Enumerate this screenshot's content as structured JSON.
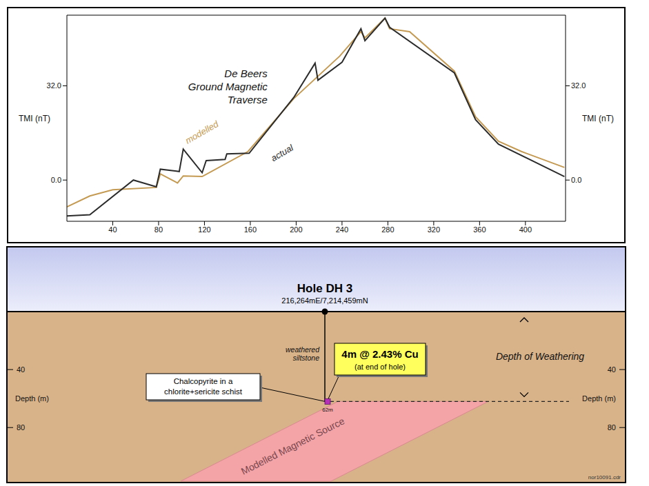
{
  "chart_data": {
    "type": "line",
    "title": "De Beers\nGround Magnetic\nTraverse",
    "y_label": "TMI (nT)",
    "xlim": [
      0,
      435
    ],
    "xticks": [
      40,
      80,
      120,
      160,
      200,
      240,
      280,
      320,
      360,
      400
    ],
    "ylim": [
      -14,
      56
    ],
    "yticks": [
      {
        "value": 0,
        "label": "0.0"
      },
      {
        "value": 32,
        "label": "32.0"
      }
    ],
    "grid": false,
    "series": [
      {
        "name": "actual",
        "color": "#2b2b2b",
        "x": [
          0,
          20,
          58,
          78,
          81.5,
          98,
          101.5,
          118,
          121.5,
          138,
          139.5,
          159,
          198,
          216.5,
          219,
          240,
          256.5,
          260,
          277.5,
          281.5,
          338,
          356.5,
          376.5,
          434
        ],
        "values": [
          -12.2,
          -11.8,
          0,
          -2.3,
          3.7,
          2.9,
          10.5,
          2.5,
          6.6,
          7,
          8.9,
          9.1,
          28.1,
          39.7,
          33.9,
          40,
          51.4,
          47.3,
          55,
          51.9,
          36.4,
          20.5,
          12.2,
          1.2
        ]
      },
      {
        "name": "modelled",
        "color": "#c49a52",
        "x": [
          0,
          20,
          40,
          78,
          81.5,
          96.5,
          101.5,
          118,
          158,
          198,
          238,
          256.5,
          260,
          277.5,
          281.5,
          299,
          338,
          356.5,
          376.5,
          396.5,
          434
        ],
        "values": [
          -9.1,
          -5.4,
          -3.3,
          -2.5,
          2.1,
          -1,
          1.4,
          1.2,
          9.7,
          27.7,
          42.1,
          50.4,
          48.3,
          55,
          51.4,
          50.4,
          37,
          21.5,
          13.2,
          9.7,
          4.3
        ]
      }
    ]
  },
  "section": {
    "depth_label": "Depth (m)",
    "depth_lim": [
      0,
      117
    ],
    "depth_ticks": [
      40,
      80
    ],
    "hole": {
      "name": "Hole DH 3",
      "coords": "216,264mE/7,214,459mN",
      "depth": 62,
      "depth_text": "62m",
      "rock": "weathered\nsiltstone"
    },
    "intercept": {
      "title": "4m @ 2.43% Cu",
      "note": "(at end of hole)"
    },
    "callout": "Chalcopyrite in a\nchlorite+sericite schist",
    "weathering": {
      "label": "Depth of Weathering",
      "depth": 62
    },
    "source_label": "Modelled Magnetic Source",
    "file": "nor10091.cdr"
  }
}
